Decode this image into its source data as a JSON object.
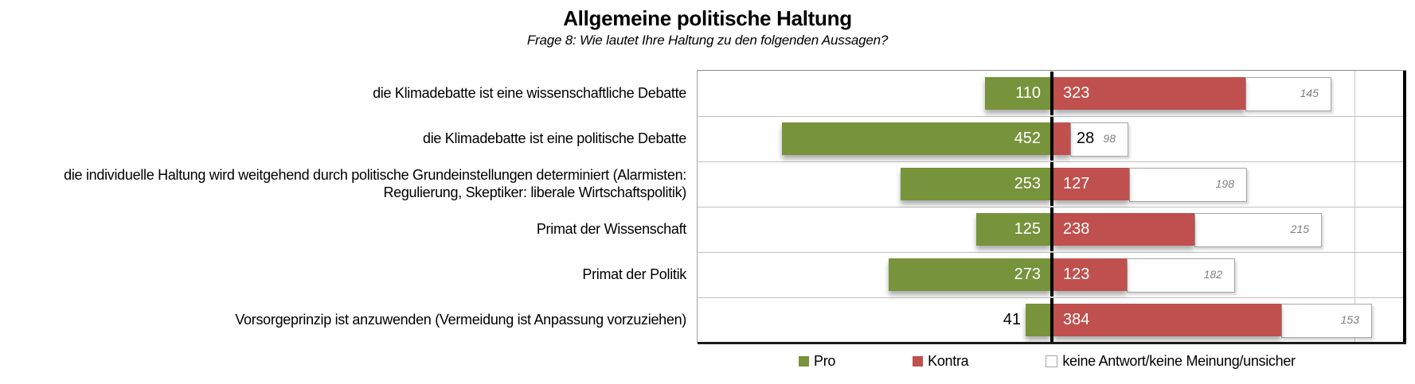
{
  "title": "Allgemeine politische Haltung",
  "subtitle": "Frage 8: Wie lautet Ihre Haltung zu den folgenden Aussagen?",
  "legend": {
    "items": [
      {
        "label": "Pro",
        "color": "#77933C",
        "filled": true
      },
      {
        "label": "Kontra",
        "color": "#C0504D",
        "filled": true
      },
      {
        "label": "keine Antwort/keine Meinung/unsicher",
        "color": "#FFFFFF",
        "border": "#A6A6A6",
        "filled": false
      }
    ]
  },
  "chart_data": {
    "type": "bar",
    "orientation": "horizontal-diverging",
    "title": "Allgemeine politische Haltung",
    "subtitle": "Frage 8: Wie lautet Ihre Haltung zu den folgenden Aussagen?",
    "categories": [
      "die Klimadebatte ist eine wissenschaftliche Debatte",
      "die Klimadebatte ist eine politische Debatte",
      "die individuelle Haltung wird weitgehend durch politische Grundeinstellungen determiniert (Alarmisten: Regulierung, Skeptiker: liberale Wirtschaftspolitik)",
      "Primat der Wissenschaft",
      "Primat der Politik",
      "Vorsorgeprinzip ist anzuwenden (Vermeidung ist Anpassung vorzuziehen)"
    ],
    "series": [
      {
        "name": "Pro",
        "color": "#77933C",
        "values": [
          110,
          452,
          253,
          125,
          273,
          41
        ]
      },
      {
        "name": "Kontra",
        "color": "#C0504D",
        "values": [
          323,
          28,
          127,
          238,
          123,
          384
        ]
      },
      {
        "name": "keine Antwort/keine Meinung/unsicher",
        "color": "#FFFFFF",
        "values": [
          145,
          98,
          198,
          215,
          182,
          153
        ]
      }
    ],
    "value_labels_shown": true,
    "grid": "row-separators",
    "zero_line": true,
    "legend_position": "bottom",
    "axis_hidden": true
  },
  "colors": {
    "pro": "#77933C",
    "kontra": "#C0504D",
    "keine_fill": "#FFFFFF",
    "keine_border": "#A6A6A6",
    "keine_text": "#7F7F7F",
    "zero_line": "#000000",
    "separator": "#C0C0C0"
  }
}
